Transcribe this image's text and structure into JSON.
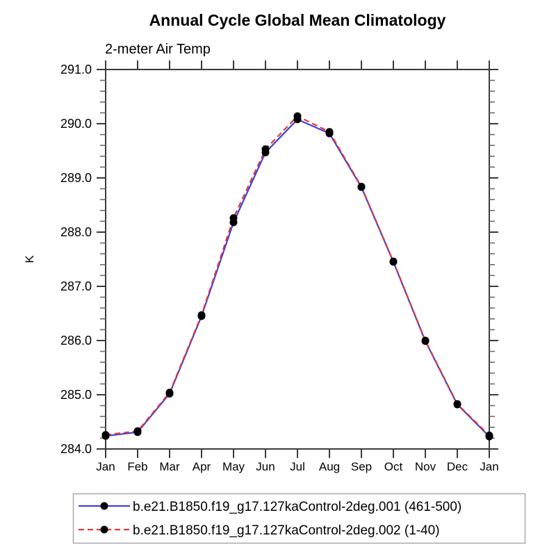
{
  "chart_data": {
    "type": "line",
    "title": "Annual Cycle Global Mean Climatology",
    "subtitle": "2-meter Air Temp",
    "ylabel": "K",
    "xlabel": "",
    "categories": [
      "Jan",
      "Feb",
      "Mar",
      "Apr",
      "May",
      "Jun",
      "Jul",
      "Aug",
      "Sep",
      "Oct",
      "Nov",
      "Dec",
      "Jan"
    ],
    "ylim": [
      284.0,
      291.0
    ],
    "y_major_step": 1.0,
    "y_minor_step": 0.2,
    "y_tick_labels": [
      "284.0",
      "285.0",
      "286.0",
      "287.0",
      "288.0",
      "289.0",
      "290.0",
      "291.0"
    ],
    "grid": false,
    "legend_position": "bottom",
    "marker": "filled-circle",
    "marker_color": "#000000",
    "axis_color": "#3a3a3a",
    "minor_tick_color": "#6a6a6a",
    "legend_border_color": "#a8a8a8",
    "series": [
      {
        "name": "b.e21.B1850.f19_g17.127kaControl-2deg.001 (461-500)",
        "color": "#4040d8",
        "style": "solid",
        "values": [
          284.24,
          284.31,
          285.02,
          286.45,
          288.18,
          289.47,
          290.08,
          289.82,
          288.83,
          287.45,
          285.99,
          284.82,
          284.23
        ]
      },
      {
        "name": "b.e21.B1850.f19_g17.127kaControl-2deg.002 (1-40)",
        "color": "#e03838",
        "style": "dashed",
        "values": [
          284.26,
          284.33,
          285.04,
          286.47,
          288.26,
          289.53,
          290.14,
          289.85,
          288.84,
          287.46,
          286.0,
          284.83,
          284.25
        ]
      }
    ]
  }
}
